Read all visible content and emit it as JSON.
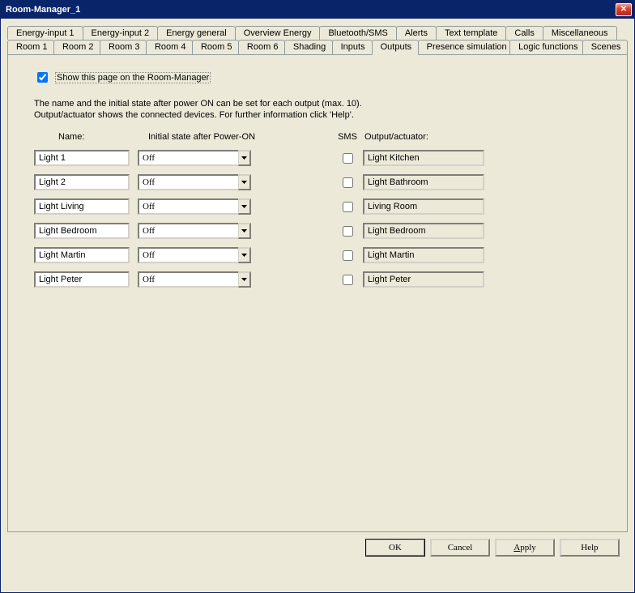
{
  "window": {
    "title": "Room-Manager_1"
  },
  "tabs_row1": [
    "Energy-input 1",
    "Energy-input 2",
    "Energy general",
    "Overview Energy",
    "Bluetooth/SMS",
    "Alerts",
    "Text template",
    "Calls",
    "Miscellaneous"
  ],
  "tabs_row2": [
    "Room 1",
    "Room 2",
    "Room 3",
    "Room 4",
    "Room 5",
    "Room 6",
    "Shading",
    "Inputs",
    "Outputs",
    "Presence simulation",
    "Logic functions",
    "Scenes"
  ],
  "active_tab": "Outputs",
  "page": {
    "show_checkbox_label": "Show this page on the Room-Manager",
    "show_checked": true,
    "description_line1": "The name and the initial state after power ON can be set for each output (max. 10).",
    "description_line2": "Output/actuator shows the connected devices. For further information click 'Help'.",
    "headers": {
      "name": "Name:",
      "state": "Initial state after Power-ON",
      "sms": "SMS",
      "output": "Output/actuator:"
    },
    "rows": [
      {
        "name": "Light 1",
        "state": "Off",
        "sms": false,
        "output": "Light Kitchen"
      },
      {
        "name": "Light 2",
        "state": "Off",
        "sms": false,
        "output": "Light Bathroom"
      },
      {
        "name": "Light Living",
        "state": "Off",
        "sms": false,
        "output": "Living Room"
      },
      {
        "name": "Light Bedroom",
        "state": "Off",
        "sms": false,
        "output": "Light Bedroom"
      },
      {
        "name": "Light Martin",
        "state": "Off",
        "sms": false,
        "output": "Light Martin"
      },
      {
        "name": "Light Peter",
        "state": "Off",
        "sms": false,
        "output": "Light Peter"
      }
    ]
  },
  "buttons": {
    "ok": "OK",
    "cancel": "Cancel",
    "apply": "Apply",
    "help": "Help"
  }
}
